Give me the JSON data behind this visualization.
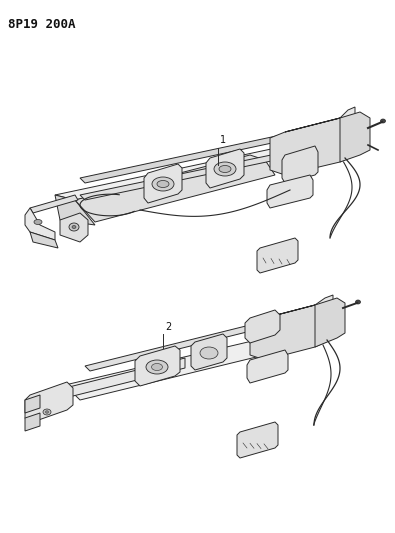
{
  "background_color": "#ffffff",
  "part_code": "8P19 200A",
  "line_color": "#2a2a2a",
  "light_gray": "#e8e8e8",
  "mid_gray": "#cccccc",
  "dark_gray": "#999999",
  "label1": "1",
  "label2": "2",
  "fig_width": 3.95,
  "fig_height": 5.33,
  "dpi": 100
}
